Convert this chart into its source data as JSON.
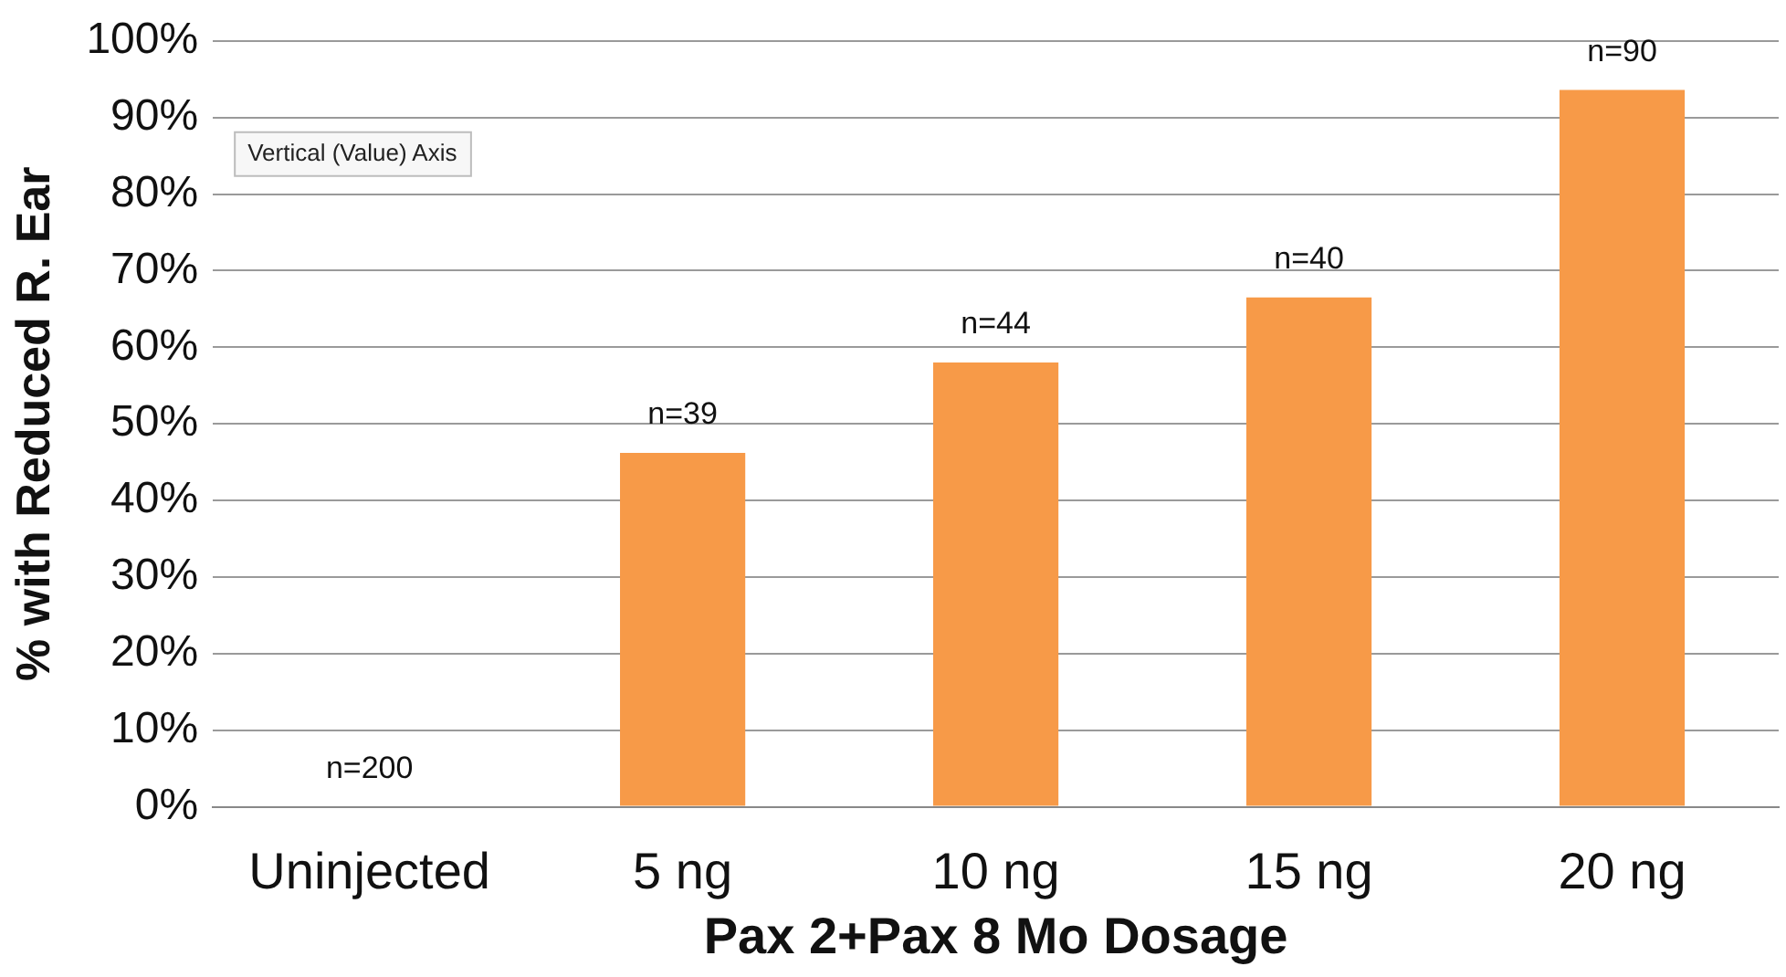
{
  "chart_data": {
    "type": "bar",
    "xlabel": "Pax 2+Pax 8 Mo Dosage",
    "ylabel": "% with Reduced R. Ear",
    "categories": [
      "Uninjected",
      "5 ng",
      "10 ng",
      "15 ng",
      "20 ng"
    ],
    "values": [
      0,
      46.2,
      58,
      66.5,
      93.6
    ],
    "color": "#f79a48",
    "ylim": [
      0,
      100
    ],
    "yticks": [
      {
        "value": 0,
        "label": "0%"
      },
      {
        "value": 10,
        "label": "10%"
      },
      {
        "value": 20,
        "label": "20%"
      },
      {
        "value": 30,
        "label": "30%"
      },
      {
        "value": 40,
        "label": "40%"
      },
      {
        "value": 50,
        "label": "50%"
      },
      {
        "value": 60,
        "label": "60%"
      },
      {
        "value": 70,
        "label": "70%"
      },
      {
        "value": 80,
        "label": "80%"
      },
      {
        "value": 90,
        "label": "90%"
      },
      {
        "value": 100,
        "label": "100%"
      }
    ],
    "grid": "y",
    "legend": false,
    "annotations": [
      {
        "text": "n=200",
        "x": "Uninjected",
        "y": 0
      },
      {
        "text": "n=39",
        "x": "5 ng",
        "y": 46.2
      },
      {
        "text": "n=44",
        "x": "10 ng",
        "y": 58
      },
      {
        "text": "n=40",
        "x": "15 ng",
        "y": 66.5
      },
      {
        "text": "n=90",
        "x": "20 ng",
        "y": 93.6
      },
      "Vertical (Value) Axis"
    ]
  }
}
